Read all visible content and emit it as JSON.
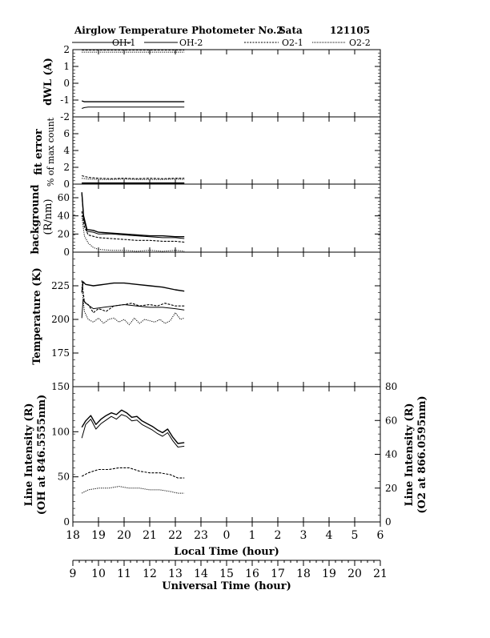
{
  "header": {
    "title": "Airglow Temperature Photometer No.2",
    "site": "Sata",
    "date": "121105"
  },
  "legend": [
    "OH-1",
    "OH-2",
    "O2-1",
    "O2-2"
  ],
  "panel_labels": {
    "dwl": "dWL (A)",
    "fit_error_1": "fit error",
    "fit_error_2": "% of max count",
    "background_1": "background",
    "background_2": "(R/nm)",
    "temperature": "Temperature (K)",
    "intensity_left_1": "Line Intensity (R)",
    "intensity_left_2": "(OH at 846.5555nm)",
    "intensity_right_1": "Line Intensity (R)",
    "intensity_right_2": "(O2 at 866.0595nm)"
  },
  "axes": {
    "local_time_label": "Local Time (hour)",
    "universal_time_label": "Universal Time (hour)"
  },
  "chart_data": {
    "type": "line",
    "x_local_ticks": [
      "18",
      "19",
      "20",
      "21",
      "22",
      "23",
      "0",
      "1",
      "2",
      "3",
      "4",
      "5",
      "6"
    ],
    "x_ut_ticks": [
      "9",
      "10",
      "11",
      "12",
      "13",
      "14",
      "15",
      "16",
      "17",
      "18",
      "19",
      "20",
      "21"
    ],
    "xlim_local_hours_from_18": [
      0,
      12
    ],
    "panels": [
      {
        "id": "dwl",
        "ylim": [
          -2,
          2
        ],
        "yticks": [
          "2",
          "1",
          "0",
          "-1",
          "-2"
        ],
        "series": [
          {
            "name": "OH-1",
            "x": [
              18.35,
              18.45,
              18.6,
              20.0,
              21.5,
              22.35
            ],
            "y": [
              -1.05,
              -1.1,
              -1.1,
              -1.1,
              -1.1,
              -1.1
            ]
          },
          {
            "name": "OH-2",
            "x": [
              18.35,
              18.45,
              18.6,
              20.0,
              21.5,
              22.35
            ],
            "y": [
              -1.5,
              -1.45,
              -1.42,
              -1.42,
              -1.42,
              -1.42
            ]
          },
          {
            "name": "O2-1",
            "x": [
              18.35,
              20.0,
              22.35
            ],
            "y": [
              1.97,
              1.97,
              1.97
            ]
          },
          {
            "name": "O2-2",
            "x": [
              18.35,
              20.0,
              22.35
            ],
            "y": [
              1.85,
              1.85,
              1.85
            ]
          }
        ]
      },
      {
        "id": "fit_error",
        "ylim": [
          0,
          8
        ],
        "yticks": [
          "6",
          "4",
          "2",
          "0"
        ],
        "series": [
          {
            "name": "OH-1",
            "x": [
              18.35,
              20.0,
              22.35
            ],
            "y": [
              0.1,
              0.1,
              0.1
            ]
          },
          {
            "name": "OH-2",
            "x": [
              18.35,
              20.0,
              22.35
            ],
            "y": [
              0.15,
              0.15,
              0.15
            ]
          },
          {
            "name": "O2-1",
            "x": [
              18.35,
              18.6,
              19.0,
              19.5,
              20.0,
              20.5,
              21.0,
              21.5,
              22.0,
              22.35
            ],
            "y": [
              1.0,
              0.8,
              0.7,
              0.65,
              0.7,
              0.65,
              0.7,
              0.65,
              0.7,
              0.7
            ]
          },
          {
            "name": "O2-2",
            "x": [
              18.35,
              18.6,
              19.0,
              19.5,
              20.0,
              20.5,
              21.0,
              21.5,
              22.0,
              22.35
            ],
            "y": [
              0.7,
              0.6,
              0.55,
              0.55,
              0.6,
              0.55,
              0.55,
              0.55,
              0.6,
              0.55
            ]
          }
        ]
      },
      {
        "id": "background",
        "ylim": [
          0,
          75
        ],
        "yticks": [
          "60",
          "40",
          "20",
          "0"
        ],
        "series": [
          {
            "name": "OH-1",
            "x": [
              18.35,
              18.42,
              18.55,
              18.8,
              19.0,
              19.5,
              20.0,
              20.5,
              21.0,
              21.5,
              22.0,
              22.35
            ],
            "y": [
              66,
              40,
              25,
              24,
              22,
              21,
              20,
              19,
              18,
              18,
              17,
              17
            ]
          },
          {
            "name": "OH-2",
            "x": [
              18.35,
              18.42,
              18.55,
              18.8,
              19.0,
              19.5,
              20.0,
              20.5,
              21.0,
              21.5,
              22.0,
              22.35
            ],
            "y": [
              64,
              37,
              23,
              22,
              20,
              20,
              19,
              18,
              17,
              16,
              16,
              15
            ]
          },
          {
            "name": "O2-1",
            "x": [
              18.35,
              18.45,
              18.6,
              19.0,
              19.5,
              20.0,
              20.5,
              21.0,
              21.5,
              22.0,
              22.35
            ],
            "y": [
              45,
              28,
              19,
              16,
              15,
              14,
              13,
              13,
              12,
              12,
              11
            ]
          },
          {
            "name": "O2-2",
            "x": [
              18.35,
              18.45,
              18.6,
              18.8,
              19.0,
              19.5,
              20.0,
              20.5,
              21.0,
              21.5,
              22.0,
              22.35
            ],
            "y": [
              40,
              18,
              10,
              5,
              3,
              2,
              2,
              1,
              2,
              1,
              2,
              1
            ]
          }
        ]
      },
      {
        "id": "temperature",
        "ylim": [
          150,
          250
        ],
        "yticks": [
          "225",
          "200",
          "175"
        ],
        "series": [
          {
            "name": "OH-1",
            "x": [
              18.35,
              18.4,
              18.5,
              18.8,
              19.2,
              19.6,
              20.0,
              20.5,
              21.0,
              21.5,
              22.0,
              22.35
            ],
            "y": [
              220,
              228,
              226,
              225,
              226,
              227,
              227,
              226,
              225,
              224,
              222,
              221
            ]
          },
          {
            "name": "OH-2",
            "x": [
              18.35,
              18.4,
              18.5,
              18.8,
              19.2,
              19.6,
              20.0,
              20.5,
              21.0,
              21.5,
              22.0,
              22.35
            ],
            "y": [
              201,
              215,
              212,
              208,
              209,
              210,
              211,
              210,
              209,
              209,
              208,
              207
            ]
          },
          {
            "name": "O2-1",
            "x": [
              18.35,
              18.45,
              18.6,
              18.8,
              19.0,
              19.3,
              19.6,
              20.0,
              20.3,
              20.6,
              21.0,
              21.3,
              21.6,
              22.0,
              22.35
            ],
            "y": [
              229,
              213,
              211,
              205,
              208,
              206,
              210,
              211,
              212,
              210,
              211,
              210,
              212,
              210,
              210
            ]
          },
          {
            "name": "O2-2",
            "x": [
              18.35,
              18.45,
              18.6,
              18.8,
              19.0,
              19.2,
              19.4,
              19.6,
              19.8,
              20.0,
              20.2,
              20.4,
              20.6,
              20.8,
              21.0,
              21.2,
              21.4,
              21.6,
              21.8,
              22.0,
              22.2,
              22.35
            ],
            "y": [
              224,
              206,
              200,
              198,
              201,
              197,
              200,
              201,
              198,
              200,
              196,
              201,
              197,
              200,
              199,
              198,
              200,
              197,
              199,
              205,
              200,
              201
            ]
          }
        ]
      },
      {
        "id": "intensity",
        "ylim": [
          0,
          150
        ],
        "yticks": [
          "150",
          "100",
          "50",
          "0"
        ],
        "ylim_right": [
          0,
          80
        ],
        "yticks_right": [
          "80",
          "60",
          "40",
          "20",
          "0"
        ],
        "series": [
          {
            "name": "OH-1",
            "axis": "left",
            "x": [
              18.35,
              18.5,
              18.7,
              18.9,
              19.1,
              19.3,
              19.5,
              19.7,
              19.9,
              20.1,
              20.3,
              20.5,
              20.7,
              20.9,
              21.1,
              21.3,
              21.5,
              21.7,
              21.9,
              22.1,
              22.35
            ],
            "y": [
              105,
              112,
              118,
              108,
              114,
              118,
              121,
              119,
              124,
              121,
              116,
              117,
              112,
              109,
              106,
              102,
              99,
              103,
              94,
              87,
              88
            ]
          },
          {
            "name": "OH-2",
            "axis": "left",
            "x": [
              18.35,
              18.5,
              18.7,
              18.9,
              19.1,
              19.3,
              19.5,
              19.7,
              19.9,
              20.1,
              20.3,
              20.5,
              20.7,
              20.9,
              21.1,
              21.3,
              21.5,
              21.7,
              21.9,
              22.1,
              22.35
            ],
            "y": [
              93,
              108,
              114,
              103,
              109,
              113,
              117,
              114,
              119,
              117,
              112,
              113,
              108,
              105,
              102,
              98,
              95,
              99,
              90,
              83,
              84
            ]
          },
          {
            "name": "O2-1",
            "axis": "right",
            "x": [
              18.35,
              18.6,
              19.0,
              19.4,
              19.8,
              20.2,
              20.6,
              21.0,
              21.4,
              21.8,
              22.1,
              22.35
            ],
            "y": [
              27,
              29,
              31,
              31,
              32,
              32,
              30,
              29,
              29,
              28,
              26,
              26
            ]
          },
          {
            "name": "O2-2",
            "axis": "right",
            "x": [
              18.35,
              18.6,
              19.0,
              19.4,
              19.8,
              20.2,
              20.6,
              21.0,
              21.4,
              21.8,
              22.1,
              22.35
            ],
            "y": [
              17,
              19,
              20,
              20,
              21,
              20,
              20,
              19,
              19,
              18,
              17,
              17
            ]
          }
        ]
      }
    ]
  }
}
